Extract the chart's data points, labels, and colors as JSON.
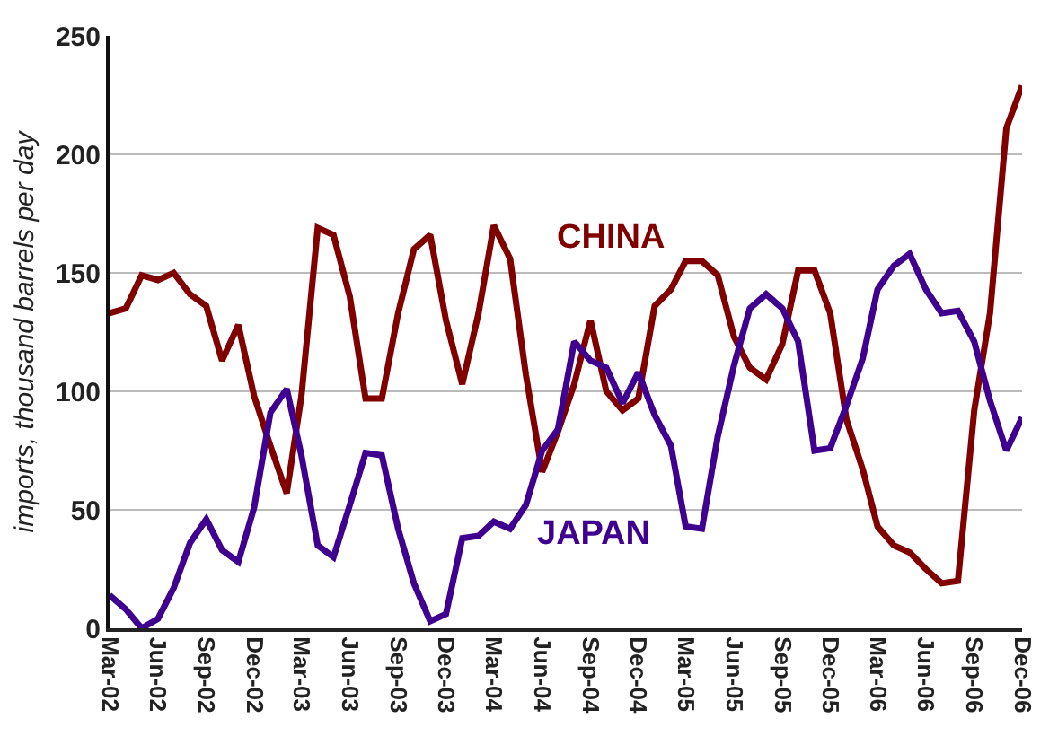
{
  "chart_data": {
    "type": "line",
    "ylabel": "imports, thousand barrels per day",
    "x": [
      "2002-03",
      "2002-04",
      "2002-05",
      "2002-06",
      "2002-07",
      "2002-08",
      "2002-09",
      "2002-10",
      "2002-11",
      "2002-12",
      "2003-01",
      "2003-02",
      "2003-03",
      "2003-04",
      "2003-05",
      "2003-06",
      "2003-07",
      "2003-08",
      "2003-09",
      "2003-10",
      "2003-11",
      "2003-12",
      "2004-01",
      "2004-02",
      "2004-03",
      "2004-04",
      "2004-05",
      "2004-06",
      "2004-07",
      "2004-08",
      "2004-09",
      "2004-10",
      "2004-11",
      "2004-12",
      "2005-01",
      "2005-02",
      "2005-03",
      "2005-04",
      "2005-05",
      "2005-06",
      "2005-07",
      "2005-08",
      "2005-09",
      "2005-10",
      "2005-11",
      "2005-12",
      "2006-01",
      "2006-02",
      "2006-03",
      "2006-04",
      "2006-05",
      "2006-06",
      "2006-07",
      "2006-08",
      "2006-09",
      "2006-10",
      "2006-11",
      "2006-12"
    ],
    "series": [
      {
        "name": "CHINA",
        "color": "#800000",
        "values": [
          133,
          135,
          149,
          147,
          150,
          141,
          136,
          113,
          128,
          98,
          77,
          57,
          98,
          169,
          166,
          140,
          97,
          97,
          133,
          160,
          166,
          130,
          103,
          133,
          170,
          156,
          107,
          66,
          83,
          103,
          130,
          100,
          92,
          97,
          136,
          143,
          155,
          155,
          149,
          123,
          110,
          105,
          120,
          151,
          151,
          133,
          88,
          67,
          43,
          35,
          32,
          25,
          19,
          20,
          92,
          133,
          211,
          229
        ]
      },
      {
        "name": "JAPAN",
        "color": "#3f0090",
        "values": [
          14,
          8,
          0,
          4,
          17,
          36,
          46,
          33,
          28,
          51,
          91,
          101,
          73,
          35,
          30,
          52,
          74,
          73,
          42,
          19,
          3,
          6,
          38,
          39,
          45,
          42,
          52,
          75,
          84,
          121,
          113,
          110,
          95,
          108,
          90,
          77,
          43,
          42,
          81,
          111,
          135,
          141,
          135,
          121,
          75,
          76,
          94,
          114,
          143,
          153,
          158,
          143,
          133,
          134,
          121,
          96,
          75,
          89
        ]
      }
    ],
    "xlim": [
      "2002-03",
      "2006-12"
    ],
    "xticks": [
      {
        "value": "2002-03",
        "label": "Mar-02"
      },
      {
        "value": "2002-06",
        "label": "Jun-02"
      },
      {
        "value": "2002-09",
        "label": "Sep-02"
      },
      {
        "value": "2002-12",
        "label": "Dec-02"
      },
      {
        "value": "2003-03",
        "label": "Mar-03"
      },
      {
        "value": "2003-06",
        "label": "Jun-03"
      },
      {
        "value": "2003-09",
        "label": "Sep-03"
      },
      {
        "value": "2003-12",
        "label": "Dec-03"
      },
      {
        "value": "2004-03",
        "label": "Mar-04"
      },
      {
        "value": "2004-06",
        "label": "Jun-04"
      },
      {
        "value": "2004-09",
        "label": "Sep-04"
      },
      {
        "value": "2004-12",
        "label": "Dec-04"
      },
      {
        "value": "2005-03",
        "label": "Mar-05"
      },
      {
        "value": "2005-06",
        "label": "Jun-05"
      },
      {
        "value": "2005-09",
        "label": "Sep-05"
      },
      {
        "value": "2005-12",
        "label": "Dec-05"
      },
      {
        "value": "2006-03",
        "label": "Mar-06"
      },
      {
        "value": "2006-06",
        "label": "Jun-06"
      },
      {
        "value": "2006-09",
        "label": "Sep-06"
      },
      {
        "value": "2006-12",
        "label": "Dec-06"
      }
    ],
    "ylim": [
      0,
      250
    ],
    "yticks": [
      0,
      50,
      100,
      150,
      200,
      250
    ],
    "grid": "y",
    "legend": false,
    "marker": "none",
    "line_style": "solid"
  }
}
